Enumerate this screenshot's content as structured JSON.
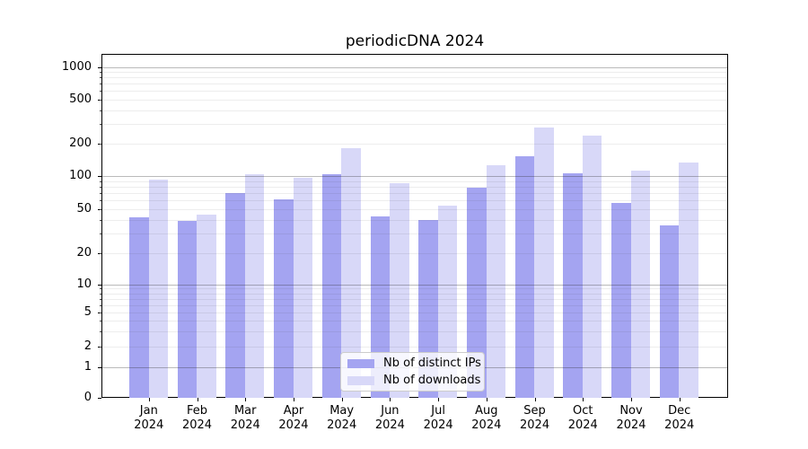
{
  "title": "periodicDNA 2024",
  "chart_data": {
    "type": "bar",
    "title": "periodicDNA 2024",
    "categories": [
      "Jan 2024",
      "Feb 2024",
      "Mar 2024",
      "Apr 2024",
      "May 2024",
      "Jun 2024",
      "Jul 2024",
      "Aug 2024",
      "Sep 2024",
      "Oct 2024",
      "Nov 2024",
      "Dec 2024"
    ],
    "x_tick_months": [
      "Jan",
      "Feb",
      "Mar",
      "Apr",
      "May",
      "Jun",
      "Jul",
      "Aug",
      "Sep",
      "Oct",
      "Nov",
      "Dec"
    ],
    "x_tick_year": "2024",
    "series": [
      {
        "name": "Nb of distinct IPs",
        "color": "#a4a4f1",
        "values": [
          42,
          39,
          70,
          62,
          104,
          43,
          40,
          78,
          152,
          106,
          57,
          36
        ]
      },
      {
        "name": "Nb of downloads",
        "color": "#d8d8f8",
        "values": [
          92,
          45,
          103,
          97,
          182,
          86,
          54,
          127,
          278,
          234,
          112,
          133
        ]
      }
    ],
    "y_axis": {
      "scale": "symlog",
      "tick_values": [
        0,
        1,
        2,
        5,
        10,
        20,
        50,
        100,
        200,
        500,
        1000
      ],
      "tick_labels": [
        "0",
        "1",
        "2",
        "5",
        "10",
        "20",
        "50",
        "100",
        "200",
        "500",
        "1000"
      ],
      "major_grid_values": [
        1,
        10,
        100,
        1000
      ],
      "minor_grid_values": [
        2,
        3,
        4,
        5,
        6,
        7,
        8,
        9,
        20,
        30,
        40,
        50,
        60,
        70,
        80,
        90,
        200,
        300,
        400,
        500,
        600,
        700,
        800,
        900
      ],
      "ylim": [
        0,
        1300
      ]
    },
    "grid": true,
    "legend_position": "lower center"
  },
  "legend": {
    "items": [
      {
        "label": "Nb of distinct IPs"
      },
      {
        "label": "Nb of downloads"
      }
    ]
  }
}
